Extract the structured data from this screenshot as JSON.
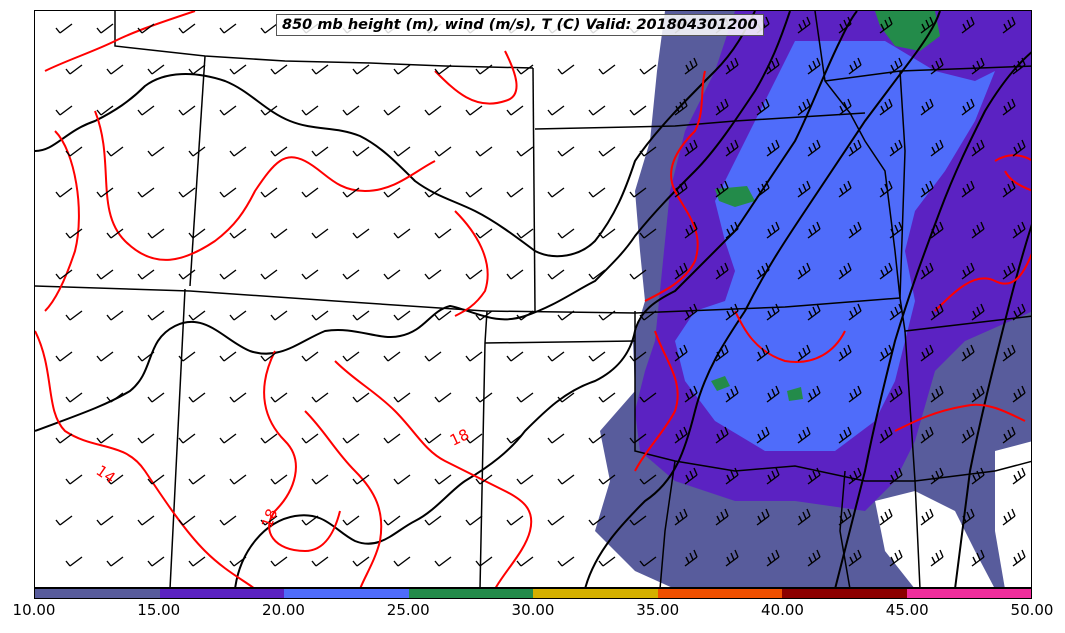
{
  "title": "850 mb height (m), wind (m/s), T (C) Valid: 201804301200",
  "colorbar": {
    "ticks": [
      "10.00",
      "15.00",
      "20.00",
      "25.00",
      "30.00",
      "35.00",
      "40.00",
      "45.00",
      "50.00"
    ],
    "colors": [
      "#585c9c",
      "#5b22c2",
      "#4f6cfa",
      "#238b4a",
      "#d4b000",
      "#f05000",
      "#8c0000",
      "#f02d9c"
    ]
  },
  "contour_labels": [
    {
      "text": "14"
    },
    {
      "text": "18"
    },
    {
      "text": "18"
    }
  ],
  "colors": {
    "temp_contour": "#ff0000",
    "height_contour": "#000000",
    "border": "#000000"
  }
}
